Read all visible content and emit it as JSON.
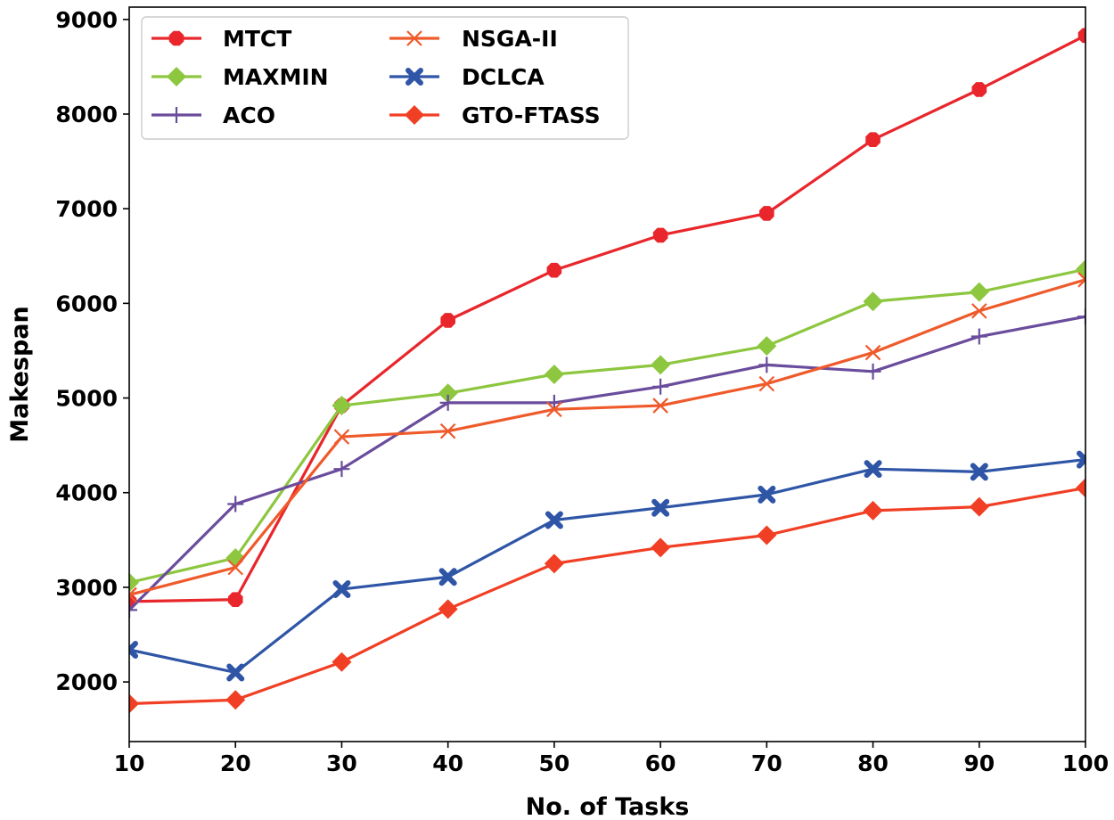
{
  "chart_data": {
    "type": "line",
    "title": "",
    "xlabel": "No. of Tasks",
    "ylabel": "Makespan",
    "x": [
      10,
      20,
      30,
      40,
      50,
      60,
      70,
      80,
      90,
      100
    ],
    "xlim": [
      10,
      100
    ],
    "ylim": [
      1370,
      9130
    ],
    "xticks": [
      10,
      20,
      30,
      40,
      50,
      60,
      70,
      80,
      90,
      100
    ],
    "yticks": [
      2000,
      3000,
      4000,
      5000,
      6000,
      7000,
      8000,
      9000
    ],
    "grid": false,
    "legend_position": "top-left",
    "series": [
      {
        "name": "MTCT",
        "color": "#e8262b",
        "marker": "octagon",
        "values": [
          2850,
          2870,
          4920,
          5820,
          6350,
          6720,
          6950,
          7730,
          8260,
          8830
        ]
      },
      {
        "name": "MAXMIN",
        "color": "#8dc63f",
        "marker": "diamond",
        "values": [
          3050,
          3310,
          4920,
          5050,
          5250,
          5350,
          5550,
          6020,
          6120,
          6360
        ]
      },
      {
        "name": "ACO",
        "color": "#6a4c9c",
        "marker": "plus",
        "values": [
          2760,
          3880,
          4250,
          4950,
          4950,
          5120,
          5350,
          5280,
          5650,
          5860
        ]
      },
      {
        "name": "NSGA-II",
        "color": "#ef5a2b",
        "marker": "x",
        "values": [
          2920,
          3210,
          4590,
          4650,
          4880,
          4920,
          5150,
          5480,
          5920,
          6250
        ]
      },
      {
        "name": "DCLCA",
        "color": "#2f55a6",
        "marker": "filled-x",
        "values": [
          2340,
          2100,
          2980,
          3110,
          3710,
          3840,
          3980,
          4250,
          4220,
          4350
        ]
      },
      {
        "name": "GTO-FTASS",
        "color": "#f03f24",
        "marker": "diamond",
        "values": [
          1770,
          1810,
          2210,
          2770,
          3250,
          3420,
          3550,
          3810,
          3850,
          4050
        ]
      }
    ]
  }
}
